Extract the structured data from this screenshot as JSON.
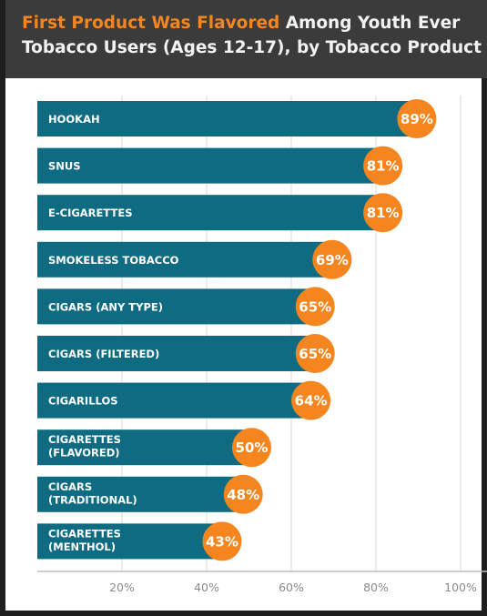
{
  "header": {
    "title_highlight": "First Product Was Flavored",
    "title_rest": " Among Youth Ever",
    "title_line2": "Tobacco Users  (Ages 12-17), by Tobacco Product"
  },
  "colors": {
    "bar": "#0f6b82",
    "bubble": "#f5861f",
    "header_bg": "#3b3b3b",
    "highlight": "#f5861f",
    "grid": "#d9d9d9"
  },
  "chart_data": {
    "type": "bar",
    "orientation": "horizontal",
    "categories": [
      [
        "HOOKAH"
      ],
      [
        "SNUS"
      ],
      [
        "E-CIGARETTES"
      ],
      [
        "SMOKELESS TOBACCO"
      ],
      [
        "CIGARS (ANY TYPE)"
      ],
      [
        "CIGARS (FILTERED)"
      ],
      [
        "CIGARILLOS"
      ],
      [
        "CIGARETTES",
        "(FLAVORED)"
      ],
      [
        "CIGARS",
        "(TRADITIONAL)"
      ],
      [
        "CIGARETTES",
        "(MENTHOL)"
      ]
    ],
    "values": [
      89,
      81,
      81,
      69,
      65,
      65,
      64,
      50,
      48,
      43
    ],
    "value_labels": [
      "89%",
      "81%",
      "81%",
      "69%",
      "65%",
      "65%",
      "64%",
      "50%",
      "48%",
      "43%"
    ],
    "xticks": [
      20,
      40,
      60,
      80,
      100
    ],
    "xtick_labels": [
      "20%",
      "40%",
      "60%",
      "80%",
      "100%"
    ],
    "xlim": [
      0,
      100
    ],
    "grid": true
  }
}
